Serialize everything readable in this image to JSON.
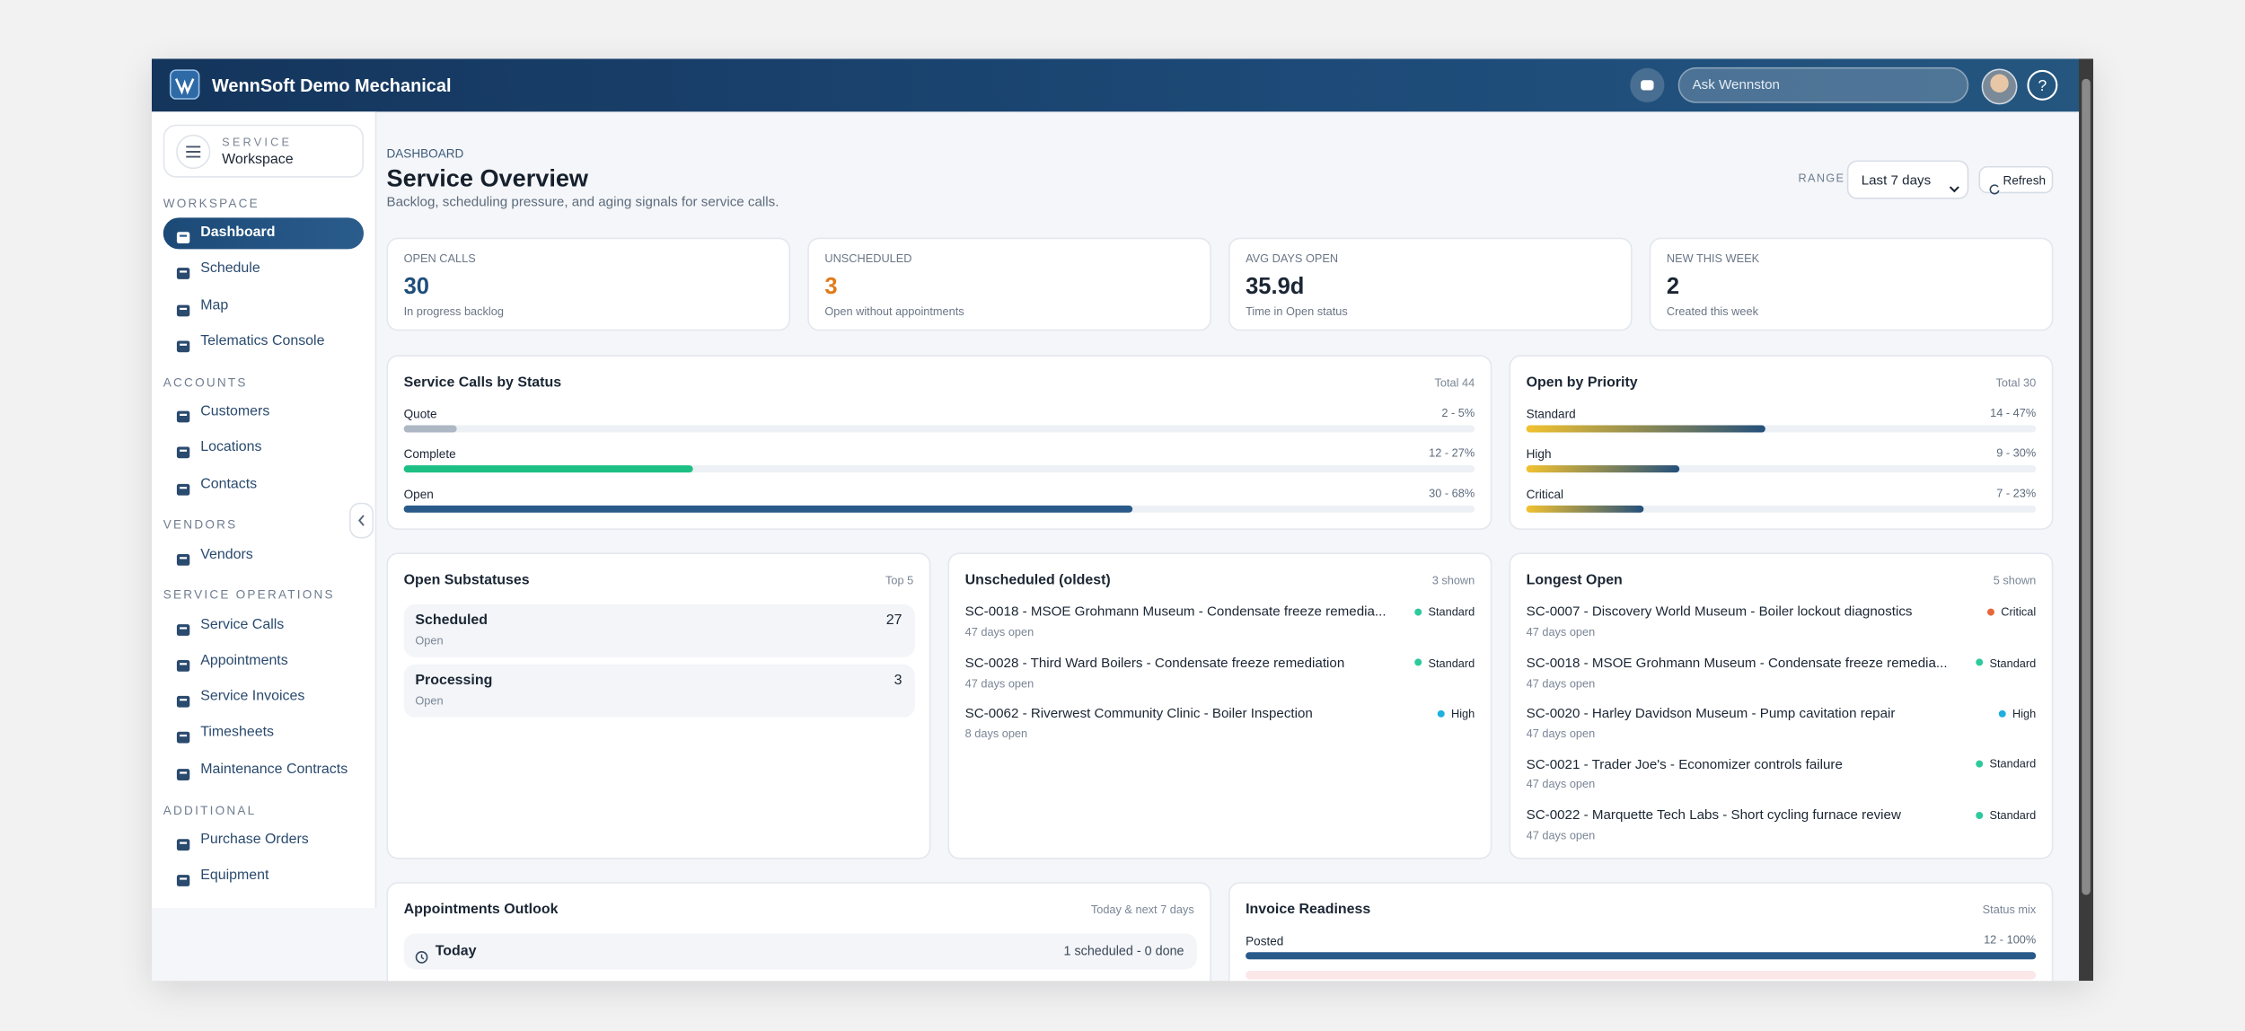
{
  "header": {
    "app_name": "WennSoft Demo Mechanical",
    "search_placeholder": "Ask Wennston"
  },
  "sidebar": {
    "module_label": "SERVICE",
    "module_name": "Workspace",
    "sections": [
      {
        "title": "WORKSPACE",
        "items": [
          {
            "label": "Dashboard",
            "active": true
          },
          {
            "label": "Schedule"
          },
          {
            "label": "Map"
          },
          {
            "label": "Telematics Console"
          }
        ]
      },
      {
        "title": "ACCOUNTS",
        "items": [
          {
            "label": "Customers"
          },
          {
            "label": "Locations"
          },
          {
            "label": "Contacts"
          }
        ]
      },
      {
        "title": "VENDORS",
        "items": [
          {
            "label": "Vendors"
          }
        ]
      },
      {
        "title": "SERVICE OPERATIONS",
        "items": [
          {
            "label": "Service Calls"
          },
          {
            "label": "Appointments"
          },
          {
            "label": "Service Invoices"
          },
          {
            "label": "Timesheets"
          },
          {
            "label": "Maintenance Contracts"
          }
        ]
      },
      {
        "title": "ADDITIONAL",
        "items": [
          {
            "label": "Purchase Orders"
          },
          {
            "label": "Equipment"
          }
        ]
      }
    ]
  },
  "page": {
    "breadcrumb": "DASHBOARD",
    "title": "Service Overview",
    "subtitle": "Backlog, scheduling pressure, and aging signals for service calls.",
    "range_label": "RANGE",
    "range_value": "Last 7 days",
    "refresh": "Refresh"
  },
  "kpis": [
    {
      "label": "OPEN CALLS",
      "value": "30",
      "note": "In progress backlog",
      "color": "#1f4e7a"
    },
    {
      "label": "UNSCHEDULED",
      "value": "3",
      "note": "Open without appointments",
      "color": "#e07b1a"
    },
    {
      "label": "AVG DAYS OPEN",
      "value": "35.9d",
      "note": "Time in Open status",
      "color": "#1b2634"
    },
    {
      "label": "NEW THIS WEEK",
      "value": "2",
      "note": "Created this week",
      "color": "#1b2634"
    }
  ],
  "status_card": {
    "title": "Service Calls by Status",
    "total": "Total 44",
    "rows": [
      {
        "label": "Quote",
        "text": "2 - 5%",
        "percent": 5,
        "color": "#aeb7c4"
      },
      {
        "label": "Complete",
        "text": "12 - 27%",
        "percent": 27,
        "color": "#1dbf84"
      },
      {
        "label": "Open",
        "text": "30 - 68%",
        "percent": 68,
        "color": "#2a5a8a"
      }
    ]
  },
  "priority_card": {
    "title": "Open by Priority",
    "total": "Total 30",
    "gradient": [
      "#f2c230",
      "#24507c"
    ],
    "rows": [
      {
        "label": "Standard",
        "text": "14 - 47%",
        "percent": 47
      },
      {
        "label": "High",
        "text": "9 - 30%",
        "percent": 30
      },
      {
        "label": "Critical",
        "text": "7 - 23%",
        "percent": 23
      }
    ]
  },
  "substatuses": {
    "title": "Open Substatuses",
    "tag": "Top 5",
    "rows": [
      {
        "name": "Scheduled",
        "status": "Open",
        "count": "27"
      },
      {
        "name": "Processing",
        "status": "Open",
        "count": "3"
      }
    ]
  },
  "unscheduled": {
    "title": "Unscheduled (oldest)",
    "tag": "3 shown",
    "items": [
      {
        "title": "SC-0018 - MSOE Grohmann Museum - Condensate freeze remedia...",
        "age": "47 days open",
        "priority": "Standard",
        "dot_color": "#2ec99c"
      },
      {
        "title": "SC-0028 - Third Ward Boilers - Condensate freeze remediation",
        "age": "47 days open",
        "priority": "Standard",
        "dot_color": "#2ec99c"
      },
      {
        "title": "SC-0062 - Riverwest Community Clinic - Boiler Inspection",
        "age": "8 days open",
        "priority": "High",
        "dot_color": "#1eb0e0"
      }
    ]
  },
  "longest_open": {
    "title": "Longest Open",
    "tag": "5 shown",
    "items": [
      {
        "title": "SC-0007 - Discovery World Museum - Boiler lockout diagnostics",
        "age": "47 days open",
        "priority": "Critical",
        "dot_color": "#e8663a"
      },
      {
        "title": "SC-0018 - MSOE Grohmann Museum - Condensate freeze remedia...",
        "age": "47 days open",
        "priority": "Standard",
        "dot_color": "#2ec99c"
      },
      {
        "title": "SC-0020 - Harley Davidson Museum - Pump cavitation repair",
        "age": "47 days open",
        "priority": "High",
        "dot_color": "#1eb0e0"
      },
      {
        "title": "SC-0021 - Trader Joe's - Economizer controls failure",
        "age": "47 days open",
        "priority": "Standard",
        "dot_color": "#2ec99c"
      },
      {
        "title": "SC-0022 - Marquette Tech Labs - Short cycling furnace review",
        "age": "47 days open",
        "priority": "Standard",
        "dot_color": "#2ec99c"
      }
    ]
  },
  "appointments": {
    "title": "Appointments Outlook",
    "tag": "Today & next 7 days",
    "rows": [
      {
        "label": "Today",
        "text": "1 scheduled - 0 done"
      }
    ]
  },
  "invoice": {
    "title": "Invoice Readiness",
    "tag": "Status mix",
    "rows": [
      {
        "label": "Posted",
        "text": "12 - 100%",
        "percent": 100,
        "color": "#2a5a8a"
      }
    ]
  }
}
